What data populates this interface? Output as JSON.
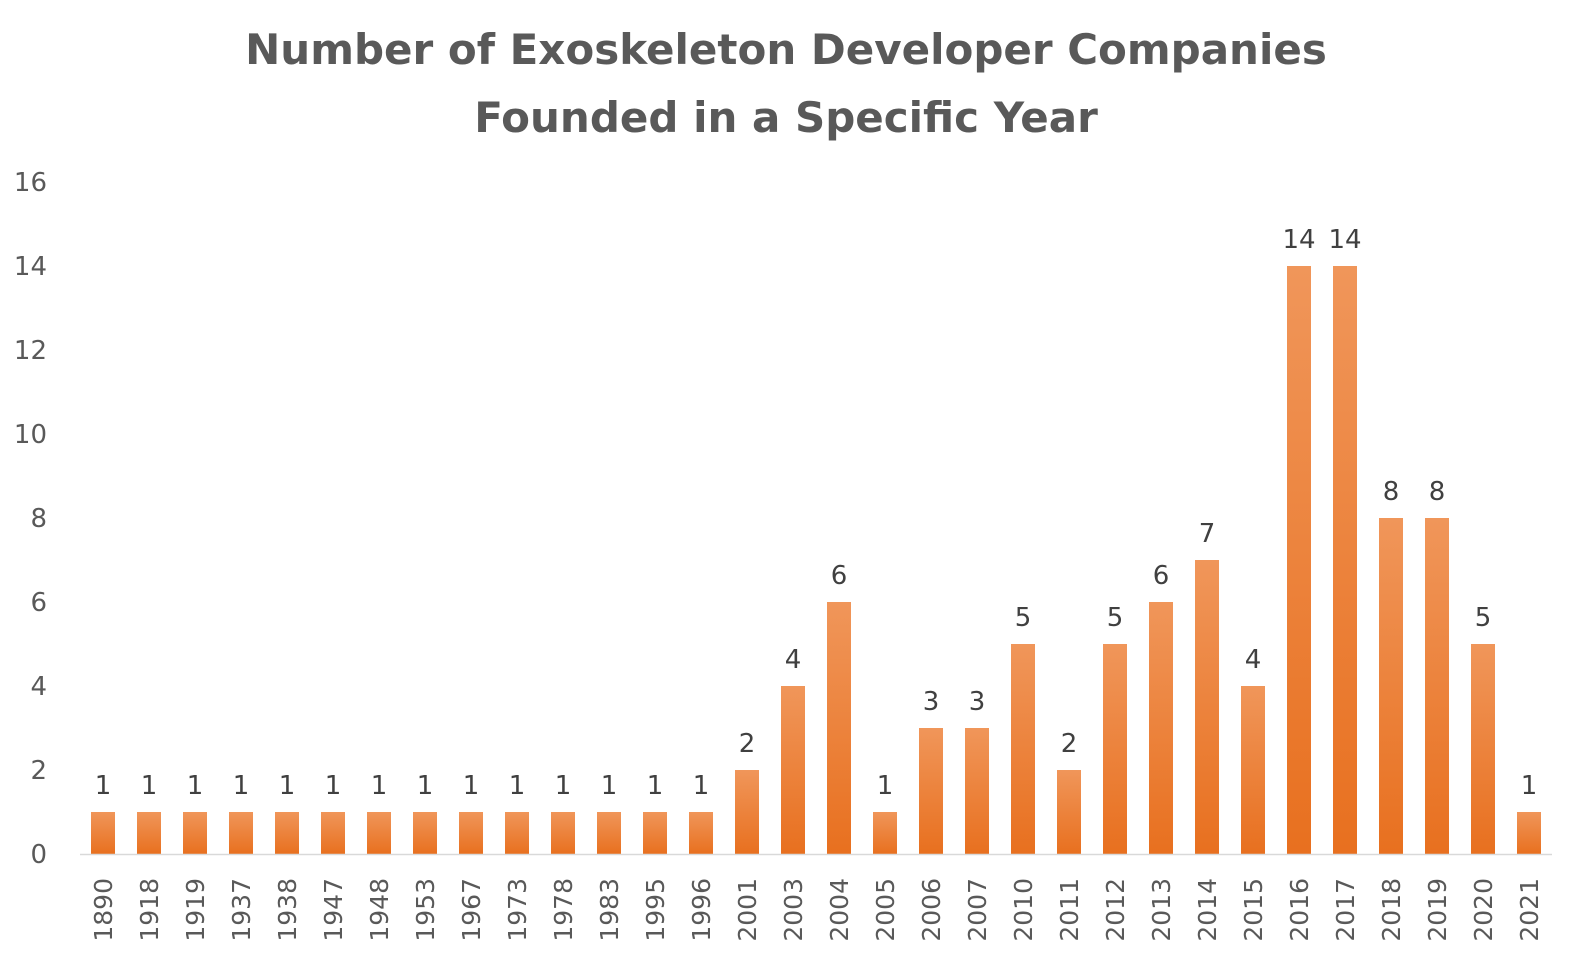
{
  "chart_data": {
    "type": "bar",
    "title_lines": [
      "Number of Exoskeleton Developer Companies",
      "Founded in a Specific Year"
    ],
    "categories": [
      "1890",
      "1918",
      "1919",
      "1937",
      "1938",
      "1947",
      "1948",
      "1953",
      "1967",
      "1973",
      "1978",
      "1983",
      "1995",
      "1996",
      "2001",
      "2003",
      "2004",
      "2005",
      "2006",
      "2007",
      "2010",
      "2011",
      "2012",
      "2013",
      "2014",
      "2015",
      "2016",
      "2017",
      "2018",
      "2019",
      "2020",
      "2021"
    ],
    "values": [
      1,
      1,
      1,
      1,
      1,
      1,
      1,
      1,
      1,
      1,
      1,
      1,
      1,
      1,
      2,
      4,
      6,
      1,
      3,
      3,
      5,
      2,
      5,
      6,
      7,
      4,
      14,
      14,
      8,
      8,
      5,
      1
    ],
    "y_ticks": [
      "0",
      "2",
      "4",
      "6",
      "8",
      "10",
      "12",
      "14",
      "16"
    ],
    "ylim": [
      0,
      16
    ],
    "grid": false,
    "legend": "none",
    "bar_color_top": "#f0965a",
    "bar_color_bottom": "#e8701f",
    "axis_color": "#d9d9d9"
  }
}
